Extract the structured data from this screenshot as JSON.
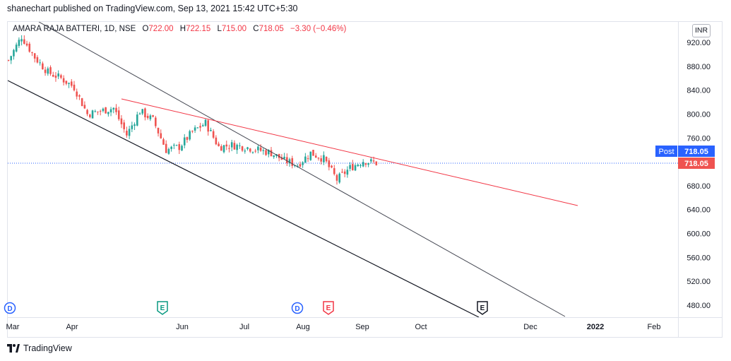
{
  "header": {
    "publish_line": "shanechart published on TradingView.com, Sep 13, 2021 15:42 UTC+5:30"
  },
  "legend": {
    "symbol": "AMARA RAJA BATTERI, 1D, NSE",
    "open_label": "O",
    "open": "722.00",
    "high_label": "H",
    "high": "722.15",
    "low_label": "L",
    "low": "715.00",
    "close_label": "C",
    "close": "718.05",
    "change": "−3.30 (−0.46%)"
  },
  "currency_button": "INR",
  "price_axis": {
    "ticks": [
      "920.00",
      "880.00",
      "840.00",
      "800.00",
      "760.00",
      "680.00",
      "640.00",
      "600.00",
      "560.00",
      "520.00",
      "480.00"
    ],
    "post_label": "Post",
    "post_value": "718.05",
    "last_value": "718.05"
  },
  "time_axis": {
    "ticks": [
      "Mar",
      "Apr",
      "Jun",
      "Jul",
      "Aug",
      "Sep",
      "Oct",
      "Dec",
      "2022",
      "Feb"
    ]
  },
  "event_markers": [
    {
      "letter": "D",
      "type": "dividend"
    },
    {
      "letter": "E",
      "type": "earnings"
    },
    {
      "letter": "D",
      "type": "dividend"
    },
    {
      "letter": "E",
      "type": "earnings"
    },
    {
      "letter": "E",
      "type": "earnings-future"
    }
  ],
  "footer": {
    "brand": "TradingView"
  },
  "colors": {
    "up": "#26a69a",
    "down": "#ef5350",
    "trendline": "#f23645",
    "channel": "#131722",
    "blue": "#2962ff"
  },
  "chart_data": {
    "type": "candlestick",
    "symbol": "AMARA RAJA BATTERI",
    "interval": "1D",
    "exchange": "NSE",
    "currency": "INR",
    "ylim": [
      455,
      955
    ],
    "last_close": 718.05,
    "approx_close_series": [
      {
        "date": "2021-03-01",
        "close": 890
      },
      {
        "date": "2021-03-08",
        "close": 930
      },
      {
        "date": "2021-03-15",
        "close": 895
      },
      {
        "date": "2021-03-22",
        "close": 870
      },
      {
        "date": "2021-03-29",
        "close": 860
      },
      {
        "date": "2021-04-05",
        "close": 845
      },
      {
        "date": "2021-04-12",
        "close": 800
      },
      {
        "date": "2021-04-19",
        "close": 805
      },
      {
        "date": "2021-04-26",
        "close": 810
      },
      {
        "date": "2021-05-03",
        "close": 765
      },
      {
        "date": "2021-05-10",
        "close": 805
      },
      {
        "date": "2021-05-17",
        "close": 790
      },
      {
        "date": "2021-05-24",
        "close": 740
      },
      {
        "date": "2021-05-31",
        "close": 745
      },
      {
        "date": "2021-06-07",
        "close": 770
      },
      {
        "date": "2021-06-14",
        "close": 785
      },
      {
        "date": "2021-06-21",
        "close": 745
      },
      {
        "date": "2021-06-28",
        "close": 748
      },
      {
        "date": "2021-07-05",
        "close": 745
      },
      {
        "date": "2021-07-12",
        "close": 740
      },
      {
        "date": "2021-07-19",
        "close": 735
      },
      {
        "date": "2021-07-26",
        "close": 722
      },
      {
        "date": "2021-08-02",
        "close": 715
      },
      {
        "date": "2021-08-09",
        "close": 735
      },
      {
        "date": "2021-08-16",
        "close": 725
      },
      {
        "date": "2021-08-23",
        "close": 690
      },
      {
        "date": "2021-08-30",
        "close": 710
      },
      {
        "date": "2021-09-06",
        "close": 722
      },
      {
        "date": "2021-09-13",
        "close": 718.05
      }
    ]
  }
}
